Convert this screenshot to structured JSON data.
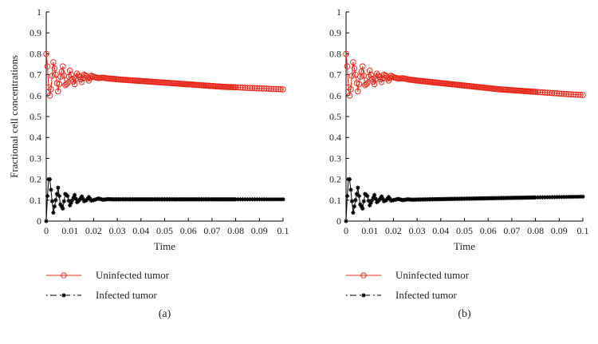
{
  "colors": {
    "uninfected": "#e8291c",
    "infected": "#000000"
  },
  "chart_data": [
    {
      "type": "line",
      "panel_label": "(a)",
      "xlabel": "Time",
      "ylabel": "Fractional cell concentrations",
      "xlim": [
        0,
        0.1
      ],
      "ylim": [
        0,
        1
      ],
      "x_ticks": [
        "0",
        "0.01",
        "0.02",
        "0.03",
        "0.04",
        "0.05",
        "0.06",
        "0.07",
        "0.08",
        "0.09",
        "0.1"
      ],
      "y_ticks": [
        "0",
        "0.1",
        "0.2",
        "0.3",
        "0.4",
        "0.5",
        "0.6",
        "0.7",
        "0.8",
        "0.9",
        "1"
      ],
      "legend": "bottom-left",
      "grid": false,
      "series": [
        {
          "name": "Uninfected tumor",
          "marker": "circle",
          "color": "#e8291c",
          "x": [
            0,
            0.0005,
            0.001,
            0.0015,
            0.002,
            0.003,
            0.004,
            0.005,
            0.006,
            0.007,
            0.008,
            0.009,
            0.01,
            0.011,
            0.012,
            0.013,
            0.014,
            0.015,
            0.016,
            0.017,
            0.018,
            0.019,
            0.02,
            0.022,
            0.024,
            0.026,
            0.028,
            0.03,
            0.035,
            0.04,
            0.045,
            0.05,
            0.055,
            0.06,
            0.065,
            0.07,
            0.075,
            0.08,
            0.085,
            0.09,
            0.095,
            0.1
          ],
          "y": [
            0.8,
            0.74,
            0.64,
            0.6,
            0.63,
            0.76,
            0.7,
            0.62,
            0.69,
            0.74,
            0.65,
            0.66,
            0.72,
            0.68,
            0.655,
            0.705,
            0.69,
            0.665,
            0.7,
            0.693,
            0.672,
            0.695,
            0.69,
            0.684,
            0.686,
            0.682,
            0.68,
            0.678,
            0.674,
            0.67,
            0.666,
            0.662,
            0.658,
            0.654,
            0.65,
            0.646,
            0.642,
            0.64,
            0.637,
            0.635,
            0.632,
            0.63
          ]
        },
        {
          "name": "Infected tumor",
          "marker": "asterisk",
          "color": "#000000",
          "x": [
            0,
            0.0005,
            0.001,
            0.0015,
            0.002,
            0.003,
            0.004,
            0.005,
            0.006,
            0.007,
            0.008,
            0.009,
            0.01,
            0.011,
            0.012,
            0.013,
            0.014,
            0.015,
            0.016,
            0.017,
            0.018,
            0.019,
            0.02,
            0.022,
            0.024,
            0.026,
            0.028,
            0.03,
            0.035,
            0.04,
            0.045,
            0.05,
            0.055,
            0.06,
            0.065,
            0.07,
            0.075,
            0.08,
            0.085,
            0.09,
            0.095,
            0.1
          ],
          "y": [
            0.0,
            0.12,
            0.2,
            0.2,
            0.15,
            0.04,
            0.1,
            0.16,
            0.08,
            0.06,
            0.13,
            0.12,
            0.075,
            0.1,
            0.125,
            0.09,
            0.1,
            0.118,
            0.095,
            0.1,
            0.115,
            0.098,
            0.1,
            0.108,
            0.102,
            0.105,
            0.104,
            0.104,
            0.104,
            0.104,
            0.104,
            0.104,
            0.104,
            0.104,
            0.104,
            0.104,
            0.104,
            0.104,
            0.104,
            0.104,
            0.104,
            0.104
          ]
        }
      ]
    },
    {
      "type": "line",
      "panel_label": "(b)",
      "xlabel": "Time",
      "ylabel": "",
      "xlim": [
        0,
        0.1
      ],
      "ylim": [
        0,
        1
      ],
      "x_ticks": [
        "0",
        "0.01",
        "0.02",
        "0.03",
        "0.04",
        "0.05",
        "0.06",
        "0.07",
        "0.08",
        "0.09",
        "0.1"
      ],
      "y_ticks": [
        "0",
        "0.1",
        "0.2",
        "0.3",
        "0.4",
        "0.5",
        "0.6",
        "0.7",
        "0.8",
        "0.9",
        "1"
      ],
      "legend": "bottom-left",
      "grid": false,
      "series": [
        {
          "name": "Uninfected tumor",
          "marker": "circle",
          "color": "#e8291c",
          "x": [
            0,
            0.0005,
            0.001,
            0.0015,
            0.002,
            0.003,
            0.004,
            0.005,
            0.006,
            0.007,
            0.008,
            0.009,
            0.01,
            0.011,
            0.012,
            0.013,
            0.014,
            0.015,
            0.016,
            0.017,
            0.018,
            0.019,
            0.02,
            0.022,
            0.024,
            0.026,
            0.028,
            0.03,
            0.035,
            0.04,
            0.045,
            0.05,
            0.055,
            0.06,
            0.065,
            0.07,
            0.075,
            0.08,
            0.085,
            0.09,
            0.095,
            0.1
          ],
          "y": [
            0.8,
            0.74,
            0.64,
            0.6,
            0.63,
            0.76,
            0.7,
            0.62,
            0.69,
            0.74,
            0.65,
            0.66,
            0.72,
            0.68,
            0.655,
            0.705,
            0.69,
            0.665,
            0.7,
            0.693,
            0.672,
            0.695,
            0.688,
            0.682,
            0.683,
            0.678,
            0.675,
            0.672,
            0.666,
            0.66,
            0.654,
            0.648,
            0.642,
            0.636,
            0.63,
            0.626,
            0.622,
            0.618,
            0.614,
            0.61,
            0.606,
            0.603
          ]
        },
        {
          "name": "Infected tumor",
          "marker": "asterisk",
          "color": "#000000",
          "x": [
            0,
            0.0005,
            0.001,
            0.0015,
            0.002,
            0.003,
            0.004,
            0.005,
            0.006,
            0.007,
            0.008,
            0.009,
            0.01,
            0.011,
            0.012,
            0.013,
            0.014,
            0.015,
            0.016,
            0.017,
            0.018,
            0.019,
            0.02,
            0.022,
            0.024,
            0.026,
            0.028,
            0.03,
            0.035,
            0.04,
            0.045,
            0.05,
            0.055,
            0.06,
            0.065,
            0.07,
            0.075,
            0.08,
            0.085,
            0.09,
            0.095,
            0.1
          ],
          "y": [
            0.0,
            0.12,
            0.2,
            0.2,
            0.15,
            0.04,
            0.1,
            0.16,
            0.08,
            0.06,
            0.13,
            0.12,
            0.075,
            0.1,
            0.125,
            0.09,
            0.1,
            0.118,
            0.095,
            0.1,
            0.115,
            0.098,
            0.1,
            0.106,
            0.1,
            0.104,
            0.102,
            0.103,
            0.104,
            0.105,
            0.106,
            0.107,
            0.108,
            0.109,
            0.11,
            0.111,
            0.112,
            0.113,
            0.114,
            0.115,
            0.116,
            0.117
          ]
        }
      ]
    }
  ]
}
